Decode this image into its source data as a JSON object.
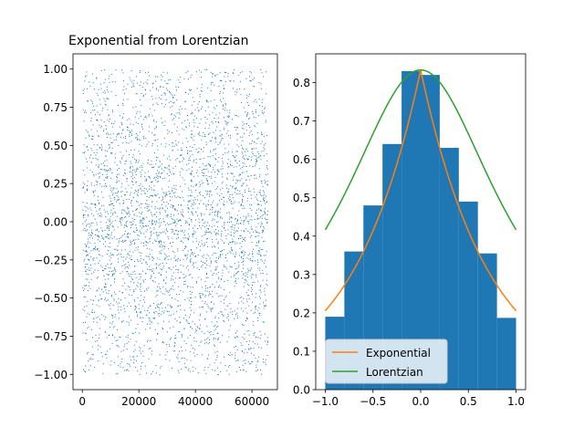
{
  "chart_data": [
    {
      "type": "scatter",
      "title": "Exponential from Lorentzian",
      "xlabel": "",
      "ylabel": "",
      "xlim": [
        -3300,
        69000
      ],
      "ylim": [
        -1.1,
        1.1
      ],
      "xticks": [
        0,
        20000,
        40000,
        60000
      ],
      "xtick_labels": [
        "0",
        "20000",
        "40000",
        "60000"
      ],
      "yticks": [
        -1.0,
        -0.75,
        -0.5,
        -0.25,
        0.0,
        0.25,
        0.5,
        0.75,
        1.0
      ],
      "ytick_labels": [
        "−1.00",
        "−0.75",
        "−0.50",
        "−0.25",
        "0.00",
        "0.25",
        "0.50",
        "0.75",
        "1.00"
      ],
      "series": [
        {
          "x_range": [
            0,
            65536
          ],
          "y_range": [
            -1.0,
            1.0
          ],
          "distribution": "uniform index vs values peaked at 0",
          "color": "#1f77b4"
        }
      ],
      "grid": false
    },
    {
      "type": "bar",
      "title": "",
      "xlabel": "",
      "ylabel": "",
      "xlim": [
        -1.1,
        1.1
      ],
      "ylim": [
        0,
        0.875
      ],
      "xticks": [
        -1.0,
        -0.5,
        0.0,
        0.5,
        1.0
      ],
      "xtick_labels": [
        "−1.0",
        "−0.5",
        "0.0",
        "0.5",
        "1.0"
      ],
      "yticks": [
        0.0,
        0.1,
        0.2,
        0.3,
        0.4,
        0.5,
        0.6,
        0.7,
        0.8
      ],
      "ytick_labels": [
        "0.0",
        "0.1",
        "0.2",
        "0.3",
        "0.4",
        "0.5",
        "0.6",
        "0.7",
        "0.8"
      ],
      "bin_edges": [
        -1.0,
        -0.8,
        -0.6,
        -0.4,
        -0.2,
        0.0,
        0.2,
        0.4,
        0.6,
        0.8,
        1.0
      ],
      "values": [
        0.19,
        0.36,
        0.48,
        0.64,
        0.83,
        0.82,
        0.63,
        0.49,
        0.355,
        0.187
      ],
      "bar_color": "#1f77b4",
      "series": [
        {
          "name": "Exponential",
          "color": "#ff7f0e",
          "formula": "0.833*exp(-1.4*|x|)"
        },
        {
          "name": "Lorentzian",
          "color": "#2ca02c",
          "formula": "0.833/(1+x^2)"
        }
      ],
      "legend": "lower-left",
      "grid": false
    }
  ]
}
